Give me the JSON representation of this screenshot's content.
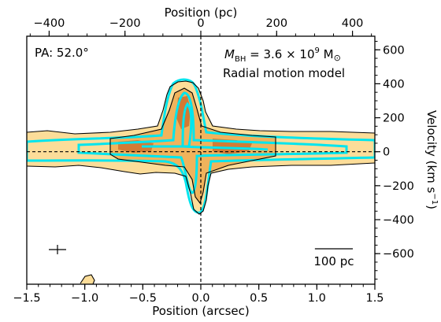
{
  "chart_data": {
    "type": "position-velocity diagram (contour)",
    "annotations": {
      "pa": "PA: 52.0°",
      "mbh_prefix": "M",
      "mbh_sub": "BH",
      "mbh_eq": " = 3.6 × 10",
      "mbh_exp": "9",
      "mbh_unit": " M",
      "mbh_sun": "⊙",
      "model": "Radial motion model",
      "scalebar_label": "100 pc"
    },
    "bottom_axis": {
      "title": "Position (arcsec)",
      "range": [
        -1.5,
        1.5
      ],
      "ticks": [
        -1.5,
        -1.0,
        -0.5,
        0.0,
        0.5,
        1.0,
        1.5
      ],
      "tick_labels": [
        "−1.5",
        "−1.0",
        "−0.5",
        "0.0",
        "0.5",
        "1.0",
        "1.5"
      ]
    },
    "top_axis": {
      "title": "Position (pc)",
      "ticks": [
        -400,
        -200,
        0,
        200,
        400
      ],
      "tick_labels": [
        "−400",
        "−200",
        "0",
        "200",
        "400"
      ],
      "pc_per_arcsec": 306
    },
    "right_axis": {
      "title_main": "Velocity (km s",
      "title_sup": "−1",
      "title_end": ")",
      "range": [
        -780,
        680
      ],
      "ticks": [
        -600,
        -400,
        -200,
        0,
        200,
        400,
        600
      ],
      "tick_labels": [
        "−600",
        "−400",
        "−200",
        "0",
        "200",
        "400",
        "600"
      ]
    },
    "scalebar_pc": 100,
    "reference_lines": {
      "x": 0.0,
      "y": 0
    },
    "colors": {
      "data_light": "#fcdd99",
      "data_mid": "#f0b35c",
      "data_dark": "#cc6e2c",
      "model_contour": "#00e5ee",
      "data_contour": "#000000"
    }
  }
}
